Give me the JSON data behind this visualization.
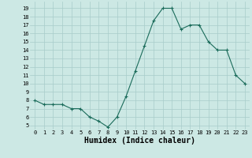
{
  "x": [
    0,
    1,
    2,
    3,
    4,
    5,
    6,
    7,
    8,
    9,
    10,
    11,
    12,
    13,
    14,
    15,
    16,
    17,
    18,
    19,
    20,
    21,
    22,
    23
  ],
  "y": [
    8,
    7.5,
    7.5,
    7.5,
    7,
    7,
    6,
    5.5,
    4.8,
    6,
    8.5,
    11.5,
    14.5,
    17.5,
    19,
    19,
    16.5,
    17,
    17,
    15,
    14,
    14,
    11,
    10
  ],
  "line_color": "#1a6b5a",
  "marker": "+",
  "marker_size": 3,
  "marker_linewidth": 0.8,
  "line_width": 0.8,
  "bg_color": "#cce8e4",
  "grid_color": "#a8ccca",
  "xlabel": "Humidex (Indice chaleur)",
  "xlabel_fontsize": 7,
  "tick_fontsize": 5,
  "yticks": [
    5,
    6,
    7,
    8,
    9,
    10,
    11,
    12,
    13,
    14,
    15,
    16,
    17,
    18,
    19
  ],
  "xticks": [
    0,
    1,
    2,
    3,
    4,
    5,
    6,
    7,
    8,
    9,
    10,
    11,
    12,
    13,
    14,
    15,
    16,
    17,
    18,
    19,
    20,
    21,
    22,
    23
  ],
  "ylim": [
    4.5,
    19.8
  ],
  "xlim": [
    -0.5,
    23.5
  ]
}
